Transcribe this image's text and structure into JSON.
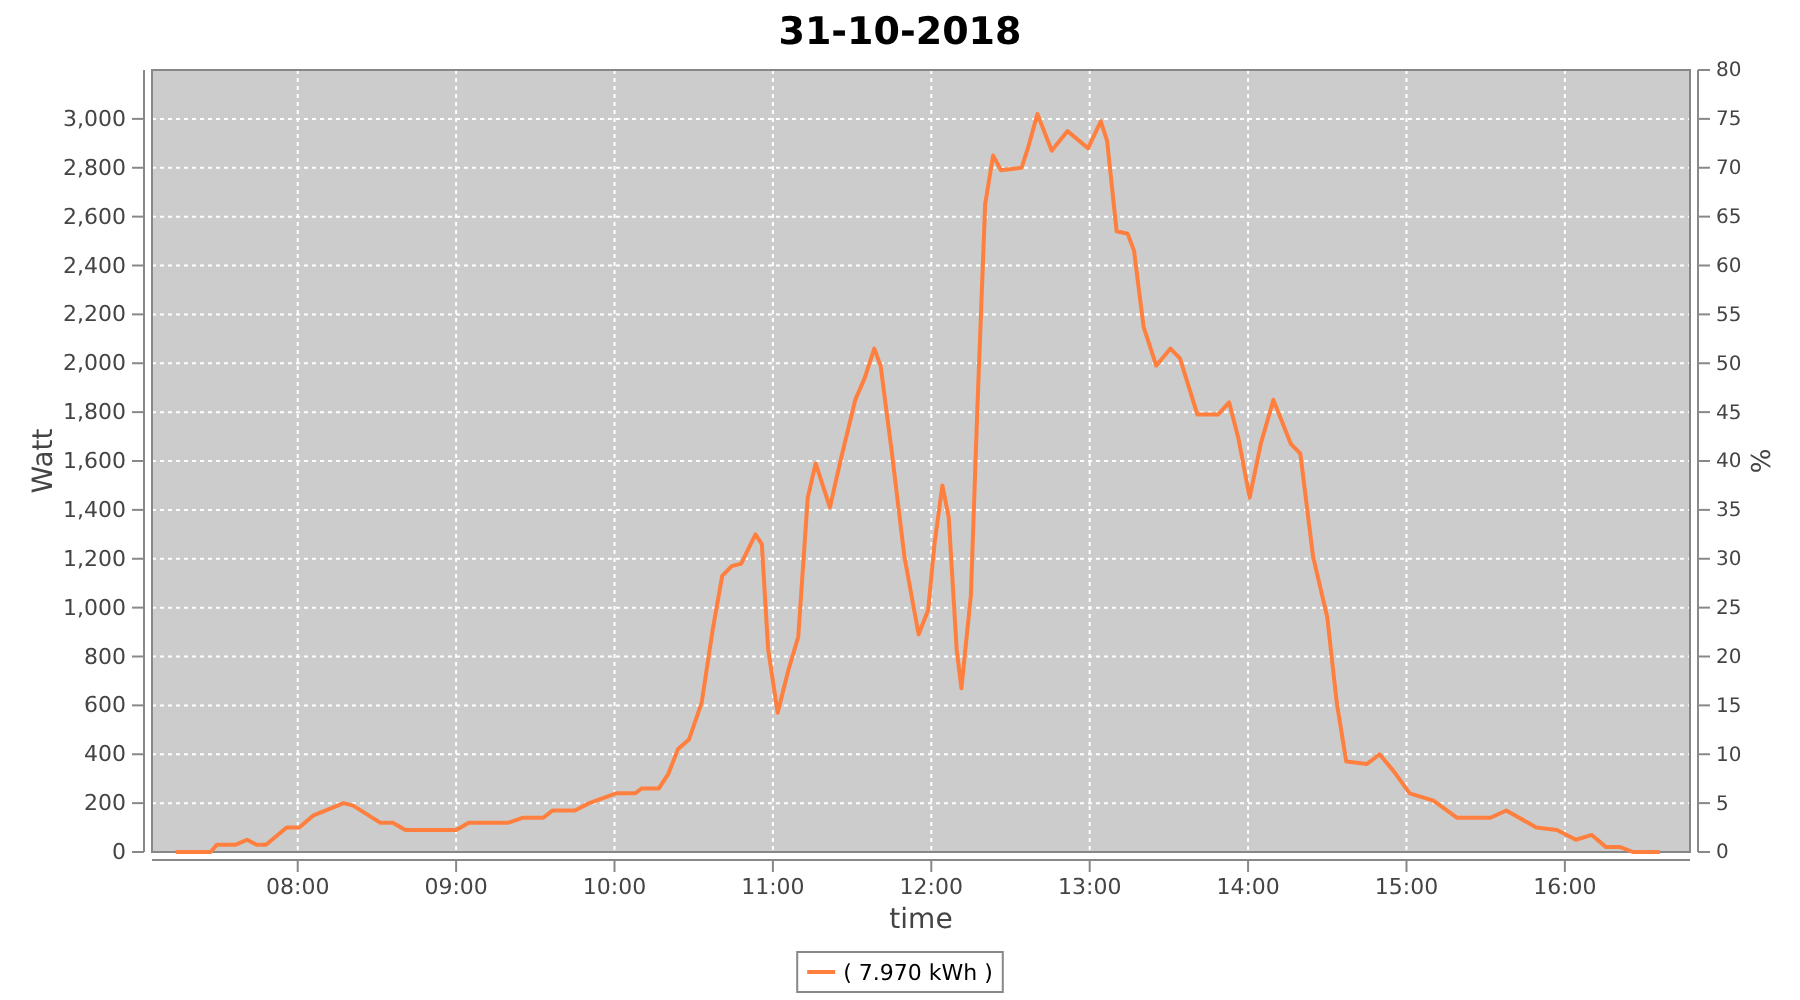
{
  "chart_data": {
    "type": "line",
    "title": "31-10-2018",
    "xlabel": "time",
    "ylabel": "Watt",
    "y2label": "%",
    "xlim": [
      7.08,
      16.79
    ],
    "xticks": [
      {
        "value": 8,
        "label": "08:00"
      },
      {
        "value": 9,
        "label": "09:00"
      },
      {
        "value": 10,
        "label": "10:00"
      },
      {
        "value": 11,
        "label": "11:00"
      },
      {
        "value": 12,
        "label": "12:00"
      },
      {
        "value": 13,
        "label": "13:00"
      },
      {
        "value": 14,
        "label": "14:00"
      },
      {
        "value": 15,
        "label": "15:00"
      },
      {
        "value": 16,
        "label": "16:00"
      }
    ],
    "ylim": [
      0,
      3200
    ],
    "yticks": [
      {
        "value": 0,
        "label": "0"
      },
      {
        "value": 200,
        "label": "200"
      },
      {
        "value": 400,
        "label": "400"
      },
      {
        "value": 600,
        "label": "600"
      },
      {
        "value": 800,
        "label": "800"
      },
      {
        "value": 1000,
        "label": "1,000"
      },
      {
        "value": 1200,
        "label": "1,200"
      },
      {
        "value": 1400,
        "label": "1,400"
      },
      {
        "value": 1600,
        "label": "1,600"
      },
      {
        "value": 1800,
        "label": "1,800"
      },
      {
        "value": 2000,
        "label": "2,000"
      },
      {
        "value": 2200,
        "label": "2,200"
      },
      {
        "value": 2400,
        "label": "2,400"
      },
      {
        "value": 2600,
        "label": "2,600"
      },
      {
        "value": 2800,
        "label": "2,800"
      },
      {
        "value": 3000,
        "label": "3,000"
      }
    ],
    "y2lim": [
      0,
      80
    ],
    "y2ticks": [
      0,
      5,
      10,
      15,
      20,
      25,
      30,
      35,
      40,
      45,
      50,
      55,
      60,
      65,
      70,
      75,
      80
    ],
    "grid": true,
    "legend": "bottom",
    "marker": "none",
    "line_style": "solid",
    "series": [
      {
        "name": "( 7.970 kWh )",
        "color": "#ff7f3f",
        "x": [
          7.23,
          7.45,
          7.49,
          7.61,
          7.68,
          7.74,
          7.8,
          7.93,
          8.01,
          8.1,
          8.29,
          8.35,
          8.52,
          8.6,
          8.68,
          8.96,
          9.0,
          9.08,
          9.33,
          9.42,
          9.55,
          9.61,
          9.75,
          9.84,
          10.01,
          10.13,
          10.17,
          10.28,
          10.34,
          10.4,
          10.47,
          10.55,
          10.62,
          10.68,
          10.74,
          10.8,
          10.89,
          10.93,
          10.97,
          11.03,
          11.1,
          11.16,
          11.22,
          11.27,
          11.36,
          11.43,
          11.52,
          11.58,
          11.64,
          11.68,
          11.75,
          11.83,
          11.92,
          11.98,
          12.02,
          12.07,
          12.11,
          12.16,
          12.19,
          12.25,
          12.29,
          12.34,
          12.39,
          12.44,
          12.57,
          12.61,
          12.67,
          12.76,
          12.86,
          12.99,
          13.07,
          13.11,
          13.17,
          13.24,
          13.28,
          13.34,
          13.42,
          13.51,
          13.57,
          13.68,
          13.81,
          13.88,
          13.94,
          14.01,
          14.08,
          14.16,
          14.27,
          14.33,
          14.41,
          14.5,
          14.56,
          14.62,
          14.75,
          14.83,
          14.92,
          15.02,
          15.17,
          15.32,
          15.53,
          15.63,
          15.82,
          15.95,
          16.07,
          16.17,
          16.26,
          16.35,
          16.43,
          16.6
        ],
        "values": [
          0,
          0,
          30,
          30,
          50,
          30,
          30,
          100,
          100,
          150,
          200,
          190,
          120,
          120,
          90,
          90,
          90,
          120,
          120,
          140,
          140,
          170,
          170,
          200,
          240,
          240,
          260,
          260,
          320,
          420,
          460,
          610,
          910,
          1130,
          1170,
          1180,
          1300,
          1260,
          830,
          570,
          750,
          880,
          1450,
          1590,
          1410,
          1610,
          1850,
          1940,
          2060,
          1990,
          1640,
          1210,
          890,
          990,
          1260,
          1500,
          1370,
          830,
          670,
          1050,
          1800,
          2650,
          2850,
          2790,
          2800,
          2880,
          3020,
          2870,
          2950,
          2880,
          2990,
          2910,
          2540,
          2530,
          2460,
          2150,
          1990,
          2060,
          2020,
          1790,
          1790,
          1840,
          1690,
          1450,
          1670,
          1850,
          1670,
          1630,
          1210,
          960,
          610,
          370,
          360,
          400,
          330,
          240,
          210,
          140,
          140,
          170,
          100,
          90,
          50,
          70,
          20,
          20,
          0,
          0
        ]
      }
    ]
  }
}
